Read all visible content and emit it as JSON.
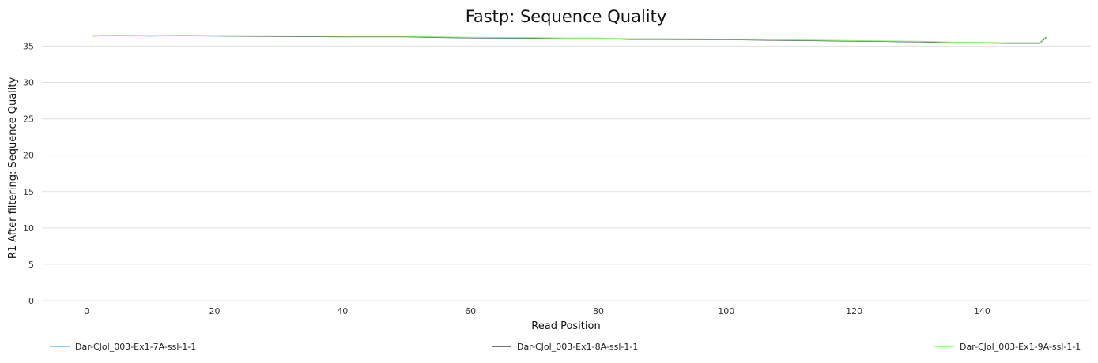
{
  "chart_data": {
    "type": "line",
    "title": "Fastp: Sequence Quality",
    "xlabel": "Read Position",
    "ylabel": "R1 After filtering: Sequence Quality",
    "xlim": [
      -7,
      157
    ],
    "ylim": [
      0,
      37
    ],
    "x_ticks": [
      0,
      20,
      40,
      60,
      80,
      100,
      120,
      140
    ],
    "y_ticks": [
      0,
      5,
      10,
      15,
      20,
      25,
      30,
      35
    ],
    "grid": true,
    "legend_position": "bottom",
    "series": [
      {
        "name": "Dar-CJol_003-Ex1-7A-ssl-1-1",
        "color": "#7cb5ec",
        "x": [
          1,
          5,
          10,
          15,
          20,
          30,
          40,
          50,
          55,
          60,
          70,
          75,
          80,
          85,
          90,
          100,
          110,
          120,
          125,
          130,
          135,
          140,
          145,
          149,
          150
        ],
        "y": [
          36.4,
          36.45,
          36.4,
          36.45,
          36.4,
          36.35,
          36.3,
          36.3,
          36.2,
          36.15,
          36.1,
          36.05,
          36.05,
          35.95,
          35.95,
          35.9,
          35.8,
          35.7,
          35.65,
          35.6,
          35.5,
          35.45,
          35.4,
          35.4,
          36.2
        ]
      },
      {
        "name": "Dar-CJol_003-Ex1-8A-ssl-1-1",
        "color": "#434348",
        "x": [
          1,
          5,
          10,
          15,
          20,
          30,
          40,
          50,
          55,
          60,
          70,
          75,
          80,
          85,
          90,
          100,
          110,
          120,
          125,
          130,
          135,
          140,
          145,
          149,
          150
        ],
        "y": [
          36.4,
          36.45,
          36.4,
          36.45,
          36.4,
          36.35,
          36.3,
          36.3,
          36.2,
          36.15,
          36.1,
          36.05,
          36.05,
          35.95,
          35.95,
          35.9,
          35.8,
          35.7,
          35.65,
          35.6,
          35.5,
          35.45,
          35.4,
          35.4,
          36.2
        ]
      },
      {
        "name": "Dar-CJol_003-Ex1-9A-ssl-1-1",
        "color": "#90ed7d",
        "x": [
          1,
          5,
          10,
          15,
          20,
          30,
          40,
          50,
          55,
          60,
          70,
          75,
          80,
          85,
          90,
          100,
          110,
          120,
          125,
          130,
          135,
          140,
          145,
          149,
          150
        ],
        "y": [
          36.45,
          36.5,
          36.45,
          36.5,
          36.45,
          36.4,
          36.35,
          36.35,
          36.25,
          36.2,
          36.15,
          36.1,
          36.1,
          36.0,
          36.0,
          35.95,
          35.85,
          35.75,
          35.7,
          35.65,
          35.55,
          35.5,
          35.45,
          35.45,
          36.3
        ]
      }
    ]
  }
}
